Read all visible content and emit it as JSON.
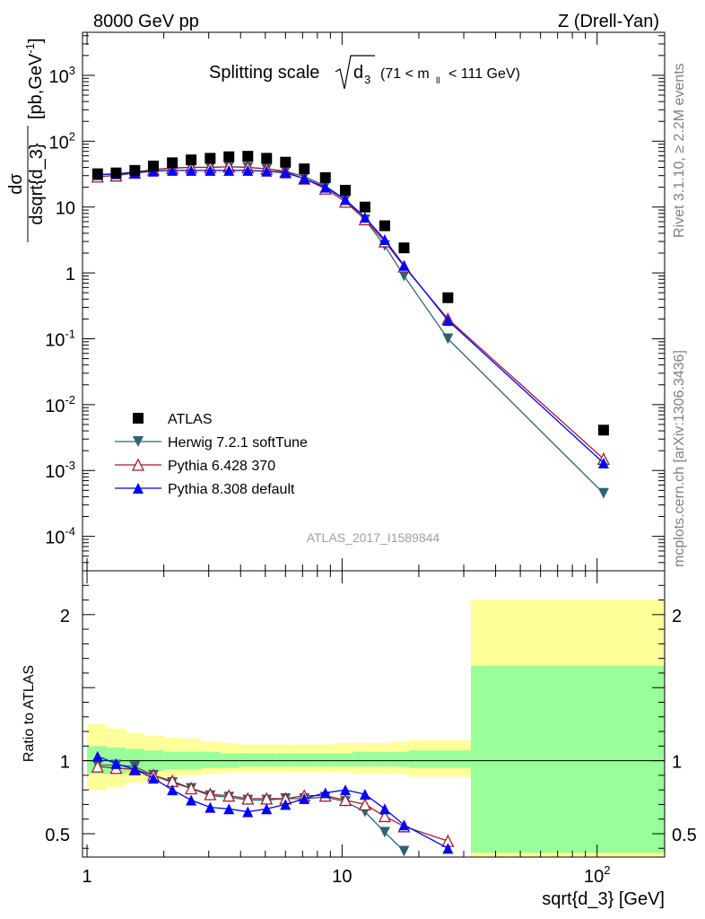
{
  "header": {
    "left": "8000 GeV pp",
    "right": "Z (Drell-Yan)"
  },
  "side_labels": {
    "rivet": "Rivet 3.1.10, ≥ 2.2M events",
    "mcplots": "mcplots.cern.ch [arXiv:1306.3436]"
  },
  "watermark": "ATLAS_2017_I1589844",
  "chart_data": [
    {
      "type": "scatter",
      "panel": "main",
      "title": "Splitting scale √d₃ (71 < m_ll < 111 GeV)",
      "title_main": "Splitting scale",
      "title_sqrt_var": "d",
      "title_sqrt_sub": "3",
      "title_cut_pre": "(71 < m",
      "title_cut_sub": "ll",
      "title_cut_post": "< 111 GeV)",
      "ylabel_num": "dσ",
      "ylabel_den": "dsqrt{d_3}",
      "ylabel_units": "[pb,GeV",
      "ylabel_units_sup": "-1",
      "ylabel_units_close": "]",
      "yscale": "log",
      "xscale": "log",
      "xlim": [
        0.96,
        184
      ],
      "ylim": [
        3e-05,
        4500
      ],
      "y_ticks": [
        {
          "v": 0.0001,
          "base": "10",
          "exp": "-4"
        },
        {
          "v": 0.001,
          "base": "10",
          "exp": "-3"
        },
        {
          "v": 0.01,
          "base": "10",
          "exp": "-2"
        },
        {
          "v": 0.1,
          "base": "10",
          "exp": "-1"
        },
        {
          "v": 1,
          "base": "1",
          "exp": ""
        },
        {
          "v": 10,
          "base": "10",
          "exp": ""
        },
        {
          "v": 100,
          "base": "10",
          "exp": "2"
        },
        {
          "v": 1000,
          "base": "10",
          "exp": "3"
        }
      ],
      "legend_position": "lower-left",
      "series": [
        {
          "name": "ATLAS",
          "marker": "square",
          "color": "#000000",
          "x": [
            1.1,
            1.3,
            1.54,
            1.82,
            2.16,
            2.56,
            3.04,
            3.6,
            4.27,
            5.06,
            6.0,
            7.11,
            8.6,
            10.3,
            12.3,
            14.7,
            17.5,
            26,
            106
          ],
          "y": [
            32,
            33,
            36,
            42,
            47,
            52,
            55,
            58,
            59,
            55,
            48,
            38,
            28,
            18,
            10,
            5.2,
            2.4,
            0.42,
            0.0041
          ]
        },
        {
          "name": "Herwig 7.2.1 softTune",
          "marker": "triangle-down",
          "color": "#2e6470",
          "x": [
            1.1,
            1.3,
            1.54,
            1.82,
            2.16,
            2.56,
            3.04,
            3.6,
            4.27,
            5.06,
            6.0,
            7.11,
            8.6,
            10.3,
            12.3,
            14.7,
            17.5,
            26,
            106
          ],
          "y": [
            31,
            32,
            34,
            37,
            39,
            40,
            40,
            41,
            40,
            38,
            35,
            29,
            21,
            13,
            6.4,
            2.6,
            0.9,
            0.1,
            0.00045
          ]
        },
        {
          "name": "Pythia 6.428 370",
          "marker": "triangle-up-open",
          "color": "#9e1c2c",
          "x": [
            1.1,
            1.3,
            1.54,
            1.82,
            2.16,
            2.56,
            3.04,
            3.6,
            4.27,
            5.06,
            6.0,
            7.11,
            8.6,
            10.3,
            12.3,
            14.7,
            17.5,
            26,
            106
          ],
          "y": [
            29,
            30,
            33,
            37,
            39,
            40,
            40,
            41,
            40,
            38,
            34,
            27,
            19,
            12,
            6.5,
            3,
            1.25,
            0.2,
            0.0015
          ]
        },
        {
          "name": "Pythia 8.308 default",
          "marker": "triangle-up",
          "color": "#0000ff",
          "x": [
            1.1,
            1.3,
            1.54,
            1.82,
            2.16,
            2.56,
            3.04,
            3.6,
            4.27,
            5.06,
            6.0,
            7.11,
            8.6,
            10.3,
            12.3,
            14.7,
            17.5,
            26,
            106
          ],
          "y": [
            31,
            32,
            33,
            35,
            36,
            36,
            36,
            36,
            36,
            35,
            33,
            27,
            20,
            13,
            7,
            3.2,
            1.3,
            0.19,
            0.0013
          ]
        }
      ]
    },
    {
      "type": "scatter",
      "panel": "ratio",
      "ylabel": "Ratio to ATLAS",
      "xlabel": "sqrt{d_3} [GeV]",
      "xscale": "log",
      "xlim": [
        0.96,
        184
      ],
      "ylim": [
        0.34,
        2.3
      ],
      "y_ticks": [
        0.5,
        1,
        2
      ],
      "x_ticks": [
        {
          "v": 1,
          "base": "1",
          "exp": ""
        },
        {
          "v": 10,
          "base": "10",
          "exp": ""
        },
        {
          "v": 100,
          "base": "10",
          "exp": "2"
        }
      ],
      "uncertainty_bands": {
        "inner_color": "#99ff99",
        "outer_color": "#ffff99",
        "bins": [
          {
            "x0": 1.0,
            "x1": 1.2,
            "inner": [
              0.91,
              1.1
            ],
            "outer": [
              0.8,
              1.25
            ]
          },
          {
            "x0": 1.2,
            "x1": 1.42,
            "inner": [
              0.91,
              1.09
            ],
            "outer": [
              0.82,
              1.22
            ]
          },
          {
            "x0": 1.42,
            "x1": 1.68,
            "inner": [
              0.92,
              1.08
            ],
            "outer": [
              0.85,
              1.19
            ]
          },
          {
            "x0": 1.68,
            "x1": 2.0,
            "inner": [
              0.93,
              1.07
            ],
            "outer": [
              0.87,
              1.17
            ]
          },
          {
            "x0": 2.0,
            "x1": 2.37,
            "inner": [
              0.94,
              1.06
            ],
            "outer": [
              0.89,
              1.16
            ]
          },
          {
            "x0": 2.37,
            "x1": 2.81,
            "inner": [
              0.94,
              1.06
            ],
            "outer": [
              0.9,
              1.15
            ]
          },
          {
            "x0": 2.81,
            "x1": 3.33,
            "inner": [
              0.95,
              1.06
            ],
            "outer": [
              0.91,
              1.13
            ]
          },
          {
            "x0": 3.33,
            "x1": 3.95,
            "inner": [
              0.95,
              1.05
            ],
            "outer": [
              0.92,
              1.12
            ]
          },
          {
            "x0": 3.95,
            "x1": 4.68,
            "inner": [
              0.96,
              1.05
            ],
            "outer": [
              0.92,
              1.11
            ]
          },
          {
            "x0": 4.68,
            "x1": 5.55,
            "inner": [
              0.96,
              1.05
            ],
            "outer": [
              0.92,
              1.11
            ]
          },
          {
            "x0": 5.55,
            "x1": 6.58,
            "inner": [
              0.96,
              1.05
            ],
            "outer": [
              0.92,
              1.11
            ]
          },
          {
            "x0": 6.58,
            "x1": 7.8,
            "inner": [
              0.96,
              1.05
            ],
            "outer": [
              0.92,
              1.11
            ]
          },
          {
            "x0": 7.8,
            "x1": 9.25,
            "inner": [
              0.96,
              1.05
            ],
            "outer": [
              0.92,
              1.11
            ]
          },
          {
            "x0": 9.25,
            "x1": 11.0,
            "inner": [
              0.96,
              1.05
            ],
            "outer": [
              0.92,
              1.12
            ]
          },
          {
            "x0": 11.0,
            "x1": 13.0,
            "inner": [
              0.96,
              1.06
            ],
            "outer": [
              0.91,
              1.12
            ]
          },
          {
            "x0": 13.0,
            "x1": 15.4,
            "inner": [
              0.96,
              1.06
            ],
            "outer": [
              0.91,
              1.12
            ]
          },
          {
            "x0": 15.4,
            "x1": 18.3,
            "inner": [
              0.96,
              1.06
            ],
            "outer": [
              0.91,
              1.13
            ]
          },
          {
            "x0": 18.3,
            "x1": 32.0,
            "inner": [
              0.95,
              1.07
            ],
            "outer": [
              0.89,
              1.14
            ]
          },
          {
            "x0": 32.0,
            "x1": 184,
            "inner": [
              0.37,
              1.65
            ],
            "outer": [
              0.1,
              2.1
            ]
          }
        ]
      },
      "reference_line": 1,
      "series": [
        {
          "name": "Herwig 7.2.1 softTune",
          "marker": "triangle-down",
          "color": "#2e6470",
          "x": [
            1.1,
            1.3,
            1.54,
            1.82,
            2.16,
            2.56,
            3.04,
            3.6,
            4.27,
            5.06,
            6.0,
            7.11,
            8.6,
            10.3,
            12.3,
            14.7,
            17.5
          ],
          "y": [
            0.97,
            0.97,
            0.96,
            0.9,
            0.85,
            0.81,
            0.76,
            0.75,
            0.73,
            0.73,
            0.74,
            0.74,
            0.75,
            0.72,
            0.65,
            0.51,
            0.38
          ]
        },
        {
          "name": "Pythia 6.428 370",
          "marker": "triangle-up-open",
          "color": "#9e1c2c",
          "x": [
            1.1,
            1.3,
            1.54,
            1.82,
            2.16,
            2.56,
            3.04,
            3.6,
            4.27,
            5.06,
            6.0,
            7.11,
            8.6,
            10.3,
            12.3,
            14.7,
            17.5,
            26
          ],
          "y": [
            0.96,
            0.95,
            0.94,
            0.9,
            0.86,
            0.81,
            0.77,
            0.76,
            0.74,
            0.74,
            0.74,
            0.76,
            0.76,
            0.73,
            0.7,
            0.62,
            0.55,
            0.45
          ]
        },
        {
          "name": "Pythia 8.308 default",
          "marker": "triangle-up",
          "color": "#0000ff",
          "x": [
            1.1,
            1.3,
            1.54,
            1.82,
            2.16,
            2.56,
            3.04,
            3.6,
            4.27,
            5.06,
            6.0,
            7.11,
            8.6,
            10.3,
            12.3,
            14.7,
            17.5,
            26
          ],
          "y": [
            1.03,
            0.98,
            0.94,
            0.88,
            0.8,
            0.73,
            0.68,
            0.67,
            0.65,
            0.67,
            0.7,
            0.74,
            0.78,
            0.8,
            0.77,
            0.67,
            0.56,
            0.4
          ]
        }
      ]
    }
  ]
}
